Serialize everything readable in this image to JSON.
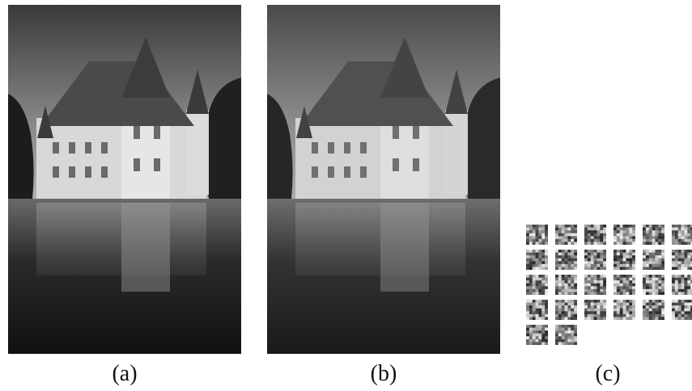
{
  "figure": {
    "panels": [
      {
        "id": "a",
        "caption": "(a)",
        "content": "castle-photo-original"
      },
      {
        "id": "b",
        "caption": "(b)",
        "content": "castle-photo-reconstructed"
      },
      {
        "id": "c",
        "caption": "(c)",
        "content": "learned-filter-grid",
        "filter_count": 26,
        "grid_columns": 6
      }
    ]
  }
}
